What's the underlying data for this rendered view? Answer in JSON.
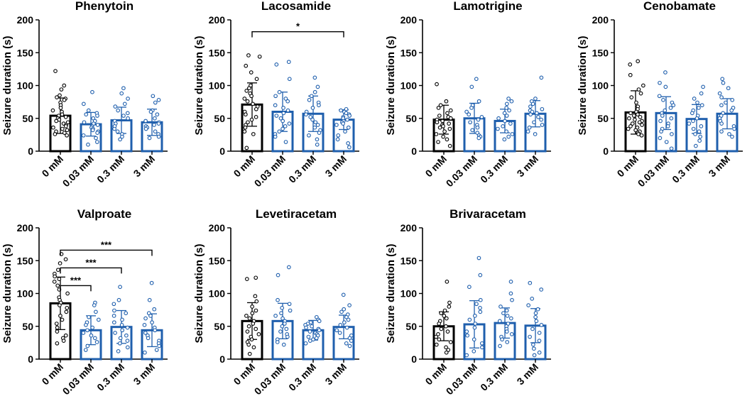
{
  "chart_data": [
    {
      "type": "bar",
      "title": "Phenytoin",
      "xlabel": "",
      "ylabel": "Seizure duration (s)",
      "ylim": [
        0,
        200
      ],
      "yticks": [
        0,
        50,
        100,
        150,
        200
      ],
      "categories": [
        "0 mM",
        "0.03 mM",
        "0.3 mM",
        "3 mM"
      ],
      "values": [
        54,
        41,
        47,
        44
      ],
      "sd": [
        27,
        18,
        20,
        20
      ],
      "points": [
        [
          122,
          100,
          94,
          85,
          82,
          80,
          78,
          74,
          70,
          66,
          62,
          60,
          56,
          54,
          52,
          50,
          48,
          46,
          44,
          42,
          40,
          38,
          36,
          34,
          32,
          30,
          28,
          26,
          24
        ],
        [
          90,
          72,
          62,
          58,
          56,
          54,
          50,
          46,
          44,
          42,
          40,
          38,
          36,
          34,
          32,
          30,
          28,
          24,
          20,
          14,
          10
        ],
        [
          96,
          88,
          80,
          72,
          68,
          62,
          58,
          54,
          50,
          46,
          42,
          38,
          34,
          30,
          26,
          22,
          18
        ],
        [
          84,
          78,
          74,
          62,
          60,
          56,
          50,
          46,
          44,
          42,
          40,
          38,
          36,
          34,
          30,
          26,
          22,
          20
        ]
      ],
      "significance": []
    },
    {
      "type": "bar",
      "title": "Lacosamide",
      "xlabel": "",
      "ylabel": "Seizure duration (s)",
      "ylim": [
        0,
        200
      ],
      "yticks": [
        0,
        50,
        100,
        150,
        200
      ],
      "categories": [
        "0 mM",
        "0.03 mM",
        "0.3 mM",
        "3 mM"
      ],
      "values": [
        71,
        60,
        57,
        48
      ],
      "sd": [
        33,
        30,
        27,
        15
      ],
      "points": [
        [
          146,
          144,
          130,
          120,
          110,
          100,
          96,
          92,
          88,
          84,
          80,
          76,
          72,
          68,
          64,
          60,
          56,
          52,
          48,
          44,
          40,
          36,
          30,
          26,
          5
        ],
        [
          136,
          132,
          110,
          90,
          84,
          80,
          76,
          70,
          66,
          62,
          58,
          54,
          50,
          46,
          42,
          38,
          34,
          30,
          26,
          22,
          14
        ],
        [
          112,
          98,
          90,
          84,
          78,
          74,
          70,
          66,
          60,
          56,
          52,
          48,
          44,
          40,
          36,
          32,
          28,
          24,
          18,
          10
        ],
        [
          64,
          62,
          60,
          58,
          56,
          54,
          52,
          50,
          48,
          46,
          44,
          42,
          40,
          36,
          30,
          24,
          18,
          12,
          6
        ]
      ],
      "significance": [
        {
          "from": 0,
          "to": 3,
          "label": "*"
        }
      ]
    },
    {
      "type": "bar",
      "title": "Lamotrigine",
      "xlabel": "",
      "ylabel": "Seizure duration (s)",
      "ylim": [
        0,
        200
      ],
      "yticks": [
        0,
        50,
        100,
        150,
        200
      ],
      "categories": [
        "0 mM",
        "0.03 mM",
        "0.3 mM",
        "3 mM"
      ],
      "values": [
        48,
        50,
        46,
        57
      ],
      "sd": [
        22,
        23,
        18,
        20
      ],
      "points": [
        [
          102,
          76,
          70,
          66,
          62,
          58,
          54,
          52,
          50,
          48,
          46,
          44,
          42,
          40,
          38,
          36,
          34,
          30,
          26,
          22,
          18,
          14,
          8
        ],
        [
          110,
          98,
          76,
          70,
          66,
          60,
          56,
          52,
          48,
          44,
          40,
          36,
          32,
          28,
          24,
          22,
          20
        ],
        [
          80,
          76,
          72,
          66,
          62,
          58,
          54,
          50,
          46,
          42,
          38,
          34,
          30,
          26,
          22,
          18
        ],
        [
          112,
          80,
          76,
          72,
          68,
          64,
          62,
          60,
          58,
          56,
          52,
          48,
          44,
          40,
          36,
          30,
          26
        ]
      ],
      "significance": []
    },
    {
      "type": "bar",
      "title": "Cenobamate",
      "xlabel": "",
      "ylabel": "Seizure duration (s)",
      "ylim": [
        0,
        200
      ],
      "yticks": [
        0,
        50,
        100,
        150,
        200
      ],
      "categories": [
        "0 mM",
        "0.03 mM",
        "0.3 mM",
        "3 mM"
      ],
      "values": [
        59,
        58,
        49,
        57
      ],
      "sd": [
        33,
        25,
        22,
        23
      ],
      "points": [
        [
          137,
          132,
          116,
          100,
          94,
          88,
          82,
          74,
          68,
          64,
          60,
          58,
          56,
          54,
          52,
          50,
          48,
          46,
          44,
          42,
          40,
          38,
          36,
          34,
          32,
          30,
          28,
          26,
          24
        ],
        [
          120,
          104,
          98,
          84,
          78,
          74,
          70,
          66,
          62,
          58,
          54,
          50,
          46,
          42,
          38,
          34,
          30,
          26,
          20,
          14,
          4
        ],
        [
          98,
          88,
          80,
          74,
          70,
          66,
          62,
          58,
          54,
          50,
          46,
          42,
          38,
          34,
          30,
          26,
          22,
          16,
          8
        ],
        [
          110,
          104,
          96,
          88,
          82,
          78,
          74,
          70,
          66,
          62,
          58,
          54,
          50,
          46,
          42,
          38,
          34,
          30,
          26,
          22
        ]
      ],
      "significance": []
    },
    {
      "type": "bar",
      "title": "Valproate",
      "xlabel": "",
      "ylabel": "Seizure duration (s)",
      "ylim": [
        0,
        200
      ],
      "yticks": [
        0,
        50,
        100,
        150,
        200
      ],
      "categories": [
        "0 mM",
        "0.03 mM",
        "0.3 mM",
        "3 mM"
      ],
      "values": [
        85,
        44,
        49,
        44
      ],
      "sd": [
        40,
        22,
        25,
        25
      ],
      "points": [
        [
          160,
          152,
          146,
          136,
          130,
          126,
          122,
          118,
          112,
          106,
          100,
          94,
          90,
          86,
          82,
          78,
          72,
          66,
          60,
          54,
          48,
          42,
          36,
          32,
          28,
          24
        ],
        [
          86,
          82,
          72,
          64,
          60,
          56,
          52,
          48,
          44,
          40,
          36,
          32,
          26,
          20,
          14
        ],
        [
          110,
          90,
          84,
          74,
          70,
          66,
          60,
          56,
          52,
          48,
          44,
          40,
          36,
          32,
          28,
          24,
          18,
          12
        ],
        [
          116,
          90,
          76,
          70,
          66,
          62,
          56,
          52,
          48,
          44,
          40,
          36,
          32,
          28,
          24,
          20,
          14,
          10
        ]
      ],
      "significance": [
        {
          "from": 0,
          "to": 1,
          "label": "***"
        },
        {
          "from": 0,
          "to": 2,
          "label": "***"
        },
        {
          "from": 0,
          "to": 3,
          "label": "***"
        }
      ]
    },
    {
      "type": "bar",
      "title": "Levetiracetam",
      "xlabel": "",
      "ylabel": "Seizure duration (s)",
      "ylim": [
        0,
        200
      ],
      "yticks": [
        0,
        50,
        100,
        150,
        200
      ],
      "categories": [
        "0 mM",
        "0.03 mM",
        "0.3 mM",
        "3 mM"
      ],
      "values": [
        58,
        58,
        44,
        49
      ],
      "sd": [
        28,
        27,
        15,
        18
      ],
      "points": [
        [
          124,
          122,
          96,
          88,
          80,
          74,
          70,
          66,
          62,
          58,
          54,
          50,
          46,
          42,
          38,
          34,
          30,
          26,
          22,
          18,
          8
        ],
        [
          140,
          128,
          90,
          84,
          78,
          74,
          70,
          66,
          62,
          58,
          54,
          50,
          46,
          42,
          38,
          34,
          30,
          26,
          22
        ],
        [
          64,
          60,
          58,
          56,
          54,
          52,
          50,
          48,
          46,
          44,
          42,
          40,
          38,
          36,
          34,
          32,
          30,
          28,
          24
        ],
        [
          98,
          82,
          76,
          72,
          68,
          64,
          60,
          56,
          52,
          48,
          44,
          40,
          36,
          32,
          28,
          24,
          20
        ]
      ],
      "significance": []
    },
    {
      "type": "bar",
      "title": "Brivaracetam",
      "xlabel": "",
      "ylabel": "Seizure duration (s)",
      "ylim": [
        0,
        200
      ],
      "yticks": [
        0,
        50,
        100,
        150,
        200
      ],
      "categories": [
        "0 mM",
        "0.03 mM",
        "0.3 mM",
        "3 mM"
      ],
      "values": [
        50,
        53,
        55,
        51
      ],
      "sd": [
        22,
        36,
        23,
        26
      ],
      "points": [
        [
          118,
          86,
          80,
          74,
          70,
          66,
          62,
          58,
          54,
          50,
          46,
          42,
          38,
          34,
          30,
          26,
          22,
          18,
          14,
          10
        ],
        [
          154,
          128,
          110,
          90,
          84,
          78,
          72,
          66,
          60,
          54,
          48,
          42,
          36,
          30,
          24,
          18,
          12,
          6
        ],
        [
          118,
          100,
          90,
          80,
          74,
          70,
          66,
          62,
          58,
          54,
          50,
          46,
          42,
          38,
          34,
          30,
          26,
          20
        ],
        [
          116,
          106,
          92,
          82,
          76,
          70,
          64,
          58,
          52,
          46,
          40,
          34,
          28,
          22,
          16,
          10,
          6
        ]
      ],
      "significance": []
    }
  ]
}
